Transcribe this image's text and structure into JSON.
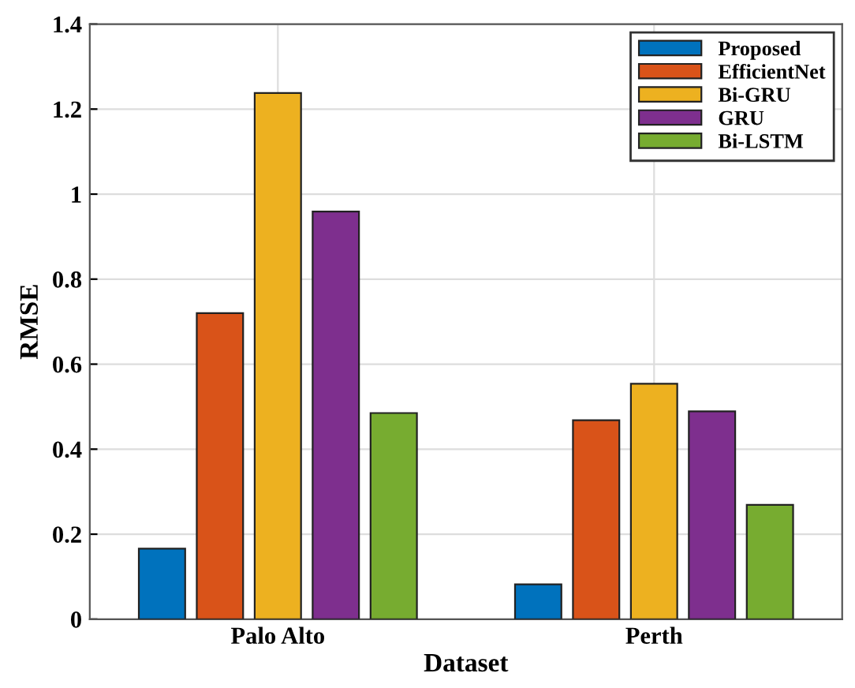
{
  "chart_data": {
    "type": "bar",
    "xlabel": "Dataset",
    "ylabel": "RMSE",
    "categories": [
      "Palo Alto",
      "Perth"
    ],
    "series": [
      {
        "name": "Proposed",
        "color": "#0072bd",
        "values": [
          0.166,
          0.082
        ]
      },
      {
        "name": "EfficientNet",
        "color": "#d95319",
        "values": [
          0.72,
          0.468
        ]
      },
      {
        "name": "Bi-GRU",
        "color": "#edb120",
        "values": [
          1.238,
          0.554
        ]
      },
      {
        "name": "GRU",
        "color": "#7e2f8e",
        "values": [
          0.959,
          0.489
        ]
      },
      {
        "name": "Bi-LSTM",
        "color": "#77ac30",
        "values": [
          0.485,
          0.269
        ]
      }
    ],
    "ylim": [
      0,
      1.4
    ],
    "yticks": [
      0,
      0.2,
      0.4,
      0.6,
      0.8,
      1,
      1.2,
      1.4
    ],
    "grid": true,
    "legend": "top right"
  }
}
